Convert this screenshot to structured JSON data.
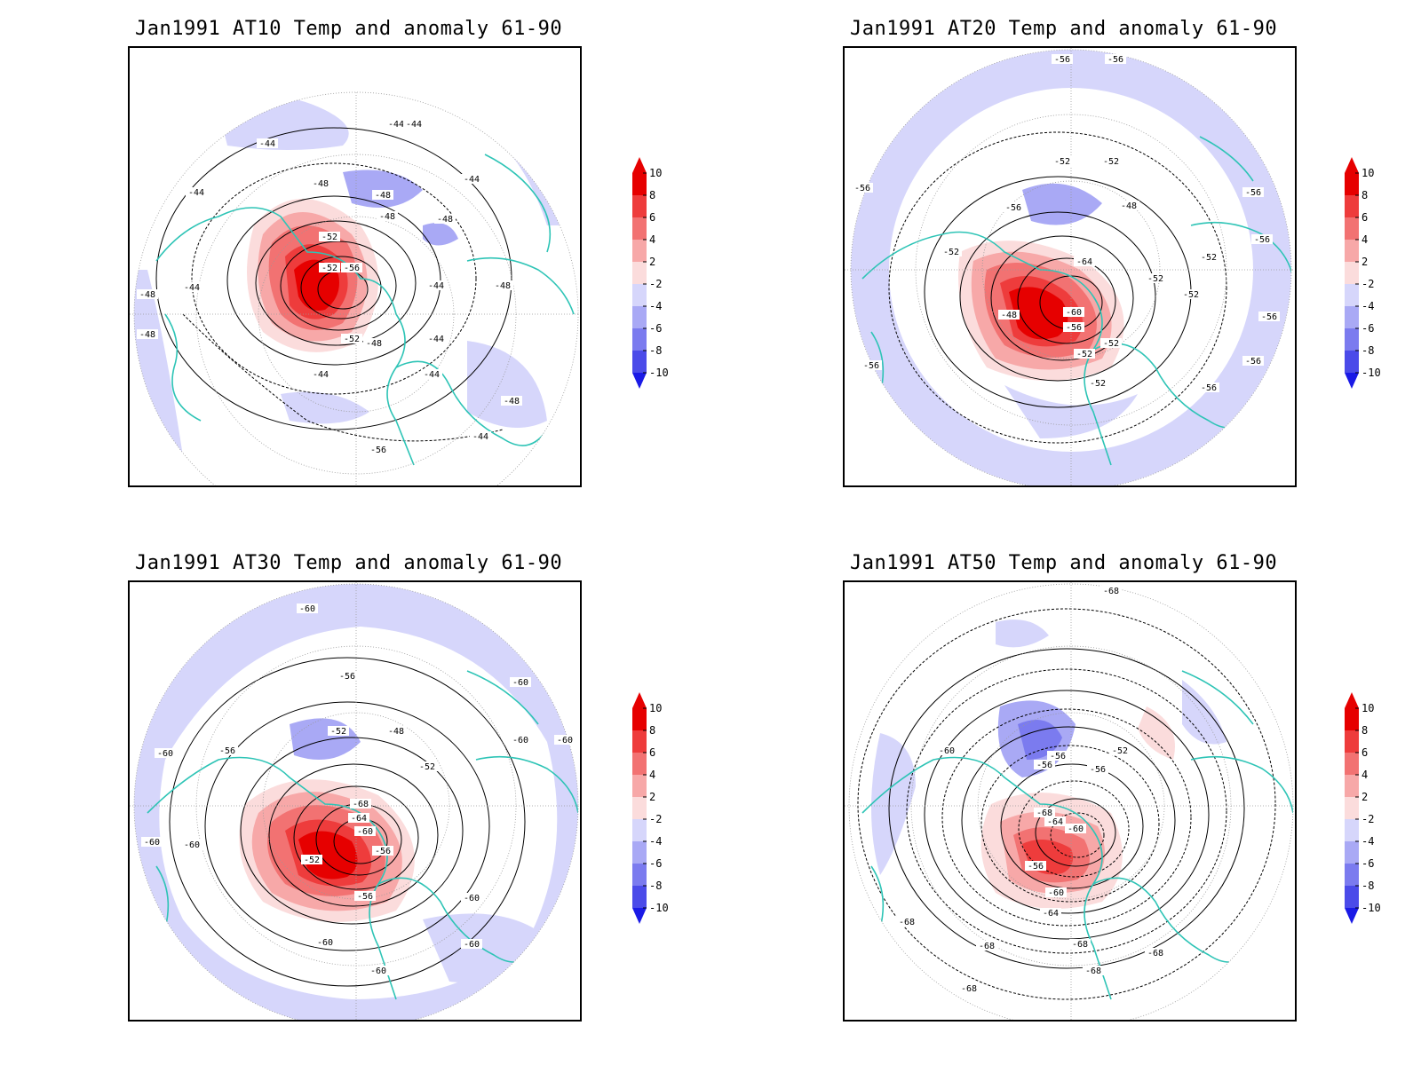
{
  "colors": {
    "coastline": "#2ec4b6",
    "contour": "#000000",
    "neg_light": "#d6d6fb",
    "neg_mid": "#a9a9f5",
    "neg_dark": "#7b7bef",
    "neg_deep": "#4b4be9",
    "neg_max": "#1a1ae6",
    "pos_light": "#fbdcdc",
    "pos_mid": "#f7a8a8",
    "pos_dark": "#f27272",
    "pos_deep": "#ee3c3c",
    "pos_max": "#e60000"
  },
  "colorbar": {
    "levels": [
      "10",
      "8",
      "6",
      "4",
      "2",
      "-2",
      "-4",
      "-6",
      "-8",
      "-10"
    ]
  },
  "panels": [
    {
      "title": "Jan1991 AT10 Temp and anomaly 61-90",
      "contour_labels": [
        "-44",
        "-44",
        "-44",
        "-44",
        "-44",
        "-48",
        "-48",
        "-48",
        "-48",
        "-52",
        "-52",
        "-56",
        "-52",
        "-48",
        "-44",
        "-44",
        "-44",
        "-48",
        "-44",
        "-48",
        "-44",
        "-44",
        "-48",
        "-48",
        "-56"
      ]
    },
    {
      "title": "Jan1991 AT20 Temp and anomaly 61-90",
      "contour_labels": [
        "-56",
        "-56",
        "-52",
        "-52",
        "-56",
        "-48",
        "-56",
        "-52",
        "-64",
        "-52",
        "-52",
        "-52",
        "-48",
        "-60",
        "-56",
        "-52",
        "-52",
        "-52",
        "-56",
        "-56",
        "-56",
        "-56",
        "-56",
        "-56"
      ]
    },
    {
      "title": "Jan1991 AT30 Temp and anomaly 61-90",
      "contour_labels": [
        "-60",
        "-56",
        "-52",
        "-48",
        "-52",
        "-56",
        "-60",
        "-60",
        "-60",
        "-60",
        "-68",
        "-64",
        "-60",
        "-56",
        "-52",
        "-56",
        "-60",
        "-60",
        "-60",
        "-60",
        "-60",
        "-60"
      ]
    },
    {
      "title": "Jan1991 AT50 Temp and anomaly 61-90",
      "contour_labels": [
        "-68",
        "-60",
        "-56",
        "-52",
        "-56",
        "-56",
        "-68",
        "-64",
        "-60",
        "-56",
        "-60",
        "-64",
        "-68",
        "-68",
        "-68",
        "-68",
        "-68",
        "-68"
      ]
    }
  ]
}
